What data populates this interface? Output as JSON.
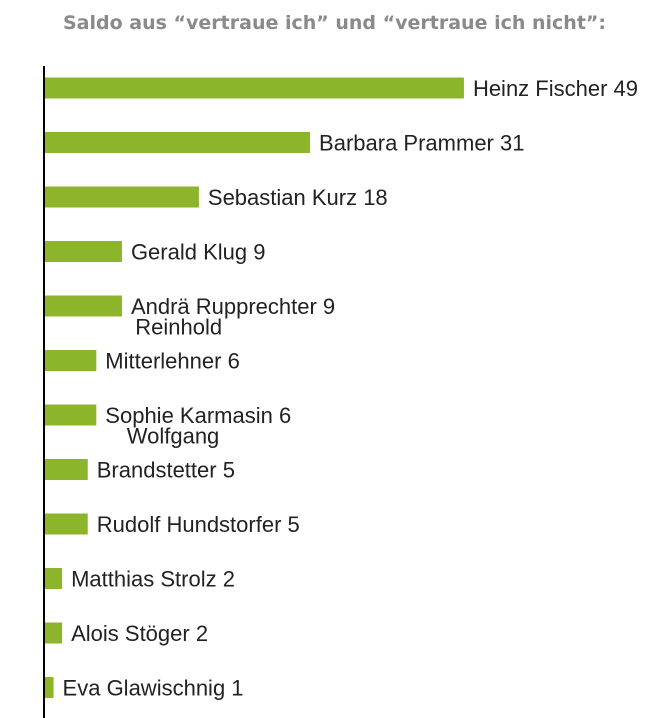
{
  "chart_data": {
    "type": "bar",
    "orientation": "horizontal",
    "title": "Saldo aus “vertraue ich” und “vertraue ich nicht”:",
    "bar_color": "#8db52c",
    "axis_color": "#000000",
    "grid": false,
    "xlabel": "",
    "ylabel": "",
    "xlim": [
      0,
      49
    ],
    "data_labels_show_values": true,
    "categories": [
      [
        "Heinz Fischer"
      ],
      [
        "Barbara Prammer"
      ],
      [
        "Sebastian Kurz"
      ],
      [
        "Gerald Klug"
      ],
      [
        "Andrä Rupprechter"
      ],
      [
        "Reinhold",
        "Mitterlehner"
      ],
      [
        "Sophie Karmasin"
      ],
      [
        "Wolfgang",
        "Brandstetter"
      ],
      [
        "Rudolf Hundstorfer"
      ],
      [
        "Matthias Strolz"
      ],
      [
        "Alois Stöger"
      ],
      [
        "Eva Glawischnig"
      ]
    ],
    "values": [
      49,
      31,
      18,
      9,
      9,
      6,
      6,
      5,
      5,
      2,
      2,
      1
    ]
  }
}
